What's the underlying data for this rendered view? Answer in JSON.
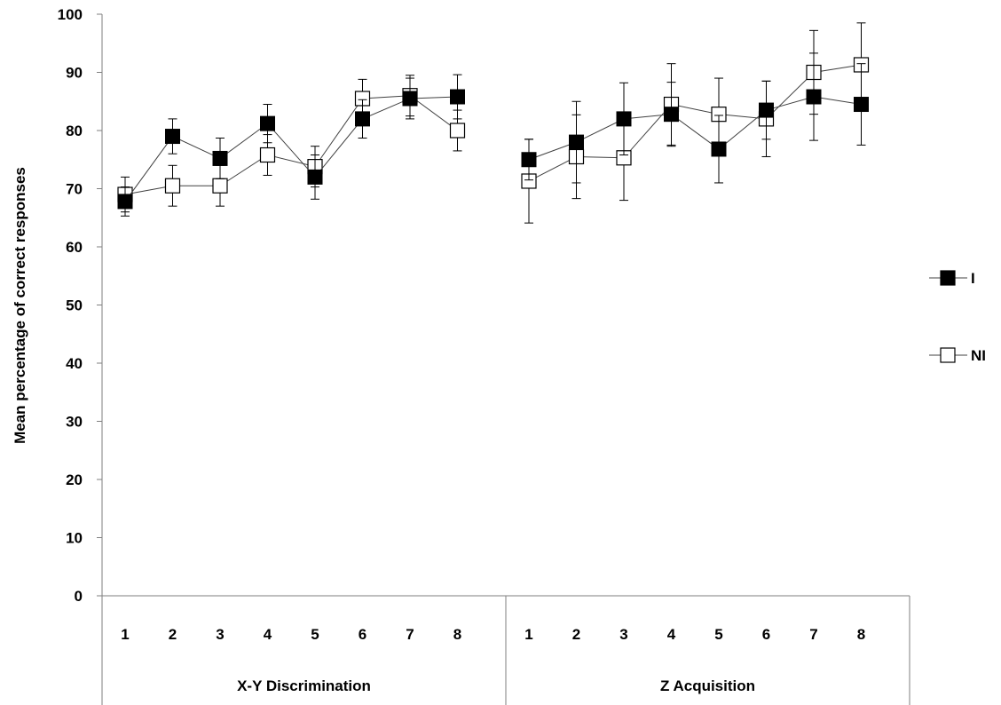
{
  "chart_data": {
    "type": "line",
    "ylabel": "Mean percentage of correct responses",
    "xlabel": "",
    "ylim": [
      0,
      100
    ],
    "yticks": [
      0,
      10,
      20,
      30,
      40,
      50,
      60,
      70,
      80,
      90,
      100
    ],
    "grid": false,
    "legend_position": "right",
    "groups": [
      {
        "label": "X-Y Discrimination",
        "categories": [
          "1",
          "2",
          "3",
          "4",
          "5",
          "6",
          "7",
          "8"
        ],
        "series": [
          {
            "name": "I",
            "marker": "filled-square",
            "values": [
              67.8,
              79.0,
              75.2,
              81.2,
              72.0,
              82.0,
              85.5,
              85.8
            ],
            "errors": [
              2.5,
              3.0,
              3.5,
              3.3,
              3.8,
              3.3,
              3.5,
              3.8
            ]
          },
          {
            "name": "NI",
            "marker": "open-square",
            "values": [
              69.0,
              70.5,
              70.5,
              75.8,
              73.8,
              85.5,
              86.0,
              80.0
            ],
            "errors": [
              3.0,
              3.5,
              3.5,
              3.5,
              3.5,
              3.3,
              3.5,
              3.5
            ]
          }
        ]
      },
      {
        "label": "Z Acquisition",
        "categories": [
          "1",
          "2",
          "3",
          "4",
          "5",
          "6",
          "7",
          "8"
        ],
        "series": [
          {
            "name": "I",
            "marker": "filled-square",
            "values": [
              75.0,
              78.0,
              82.0,
              82.8,
              76.8,
              83.5,
              85.8,
              84.5
            ],
            "errors": [
              3.5,
              7.0,
              6.2,
              5.5,
              5.8,
              5.0,
              7.5,
              7.0
            ]
          },
          {
            "name": "NI",
            "marker": "open-square",
            "values": [
              71.3,
              75.5,
              75.3,
              84.5,
              82.8,
              82.0,
              90.0,
              91.3
            ],
            "errors": [
              7.2,
              7.2,
              7.3,
              7.0,
              6.2,
              6.5,
              7.2,
              7.2
            ]
          }
        ]
      }
    ],
    "legend": [
      {
        "name": "I",
        "marker": "filled-square"
      },
      {
        "name": "NI",
        "marker": "open-square"
      }
    ],
    "colors": {
      "line": "#404040",
      "marker_fill_I": "#000000",
      "marker_fill_NI": "#ffffff",
      "marker_stroke": "#000000",
      "axis": "#7f7f7f"
    }
  }
}
